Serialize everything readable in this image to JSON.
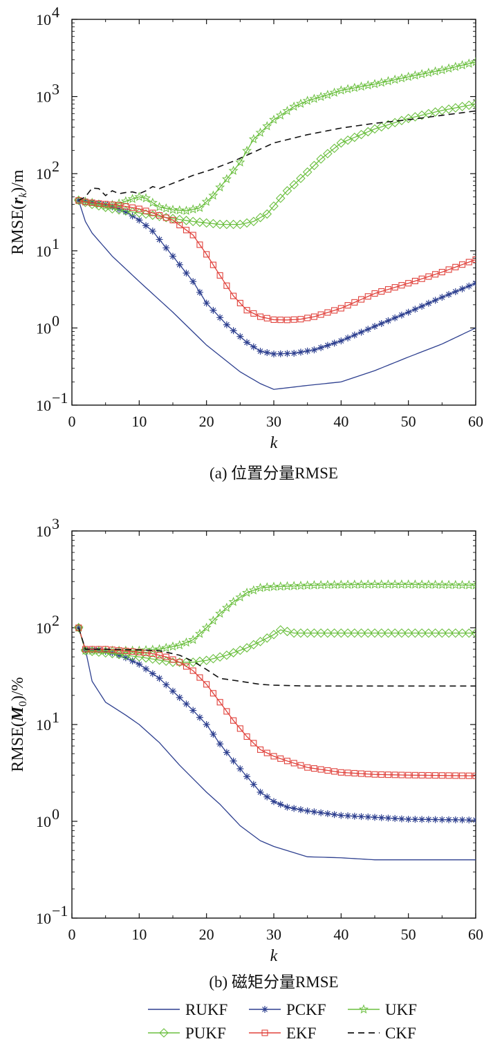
{
  "chart_data": [
    {
      "type": "line",
      "panel": "a",
      "caption": "(a) 位置分量RMSE",
      "xlabel": "k",
      "ylabel": "RMSE(r_k)/m",
      "ylabel_parts": {
        "pre": "RMSE(",
        "var": "r",
        "sub": "k",
        "post": ")/m"
      },
      "xlim": [
        0,
        60
      ],
      "ylim_log10": [
        -1,
        4
      ],
      "yscale": "log",
      "xticks": [
        0,
        10,
        20,
        30,
        40,
        50,
        60
      ],
      "yticks": [
        {
          "base": "10",
          "exp": "−1"
        },
        {
          "base": "10",
          "exp": "0"
        },
        {
          "base": "10",
          "exp": "1"
        },
        {
          "base": "10",
          "exp": "2"
        },
        {
          "base": "10",
          "exp": "3"
        },
        {
          "base": "10",
          "exp": "4"
        }
      ],
      "series": [
        {
          "name": "RUKF",
          "keys_k": [
            1,
            2,
            3,
            6,
            10,
            15,
            20,
            25,
            28,
            30,
            35,
            40,
            45,
            50,
            55,
            60
          ],
          "keys_v": [
            45,
            24,
            17,
            8.5,
            4,
            1.6,
            0.6,
            0.27,
            0.19,
            0.16,
            0.18,
            0.2,
            0.28,
            0.42,
            0.62,
            1.0
          ]
        },
        {
          "name": "PCKF",
          "keys_k": [
            1,
            2,
            5,
            8,
            10,
            12,
            15,
            18,
            20,
            23,
            26,
            28,
            30,
            33,
            36,
            40,
            45,
            50,
            55,
            60
          ],
          "keys_v": [
            45,
            44,
            40,
            32,
            25,
            18,
            8.5,
            4,
            2.1,
            1.1,
            0.65,
            0.5,
            0.46,
            0.47,
            0.52,
            0.68,
            1.05,
            1.6,
            2.5,
            3.8
          ]
        },
        {
          "name": "UKF",
          "keys_k": [
            1,
            3,
            5,
            7,
            9,
            10,
            11,
            12,
            13,
            15,
            17,
            19,
            21,
            23,
            25,
            27,
            30,
            33,
            35,
            38,
            40,
            45,
            50,
            55,
            60
          ],
          "keys_v": [
            45,
            42,
            38,
            41,
            47,
            50,
            48,
            42,
            37,
            34,
            33,
            36,
            52,
            85,
            140,
            280,
            500,
            740,
            880,
            1050,
            1200,
            1450,
            1800,
            2200,
            2800
          ]
        },
        {
          "name": "PUKF",
          "keys_k": [
            1,
            3,
            6,
            10,
            14,
            18,
            22,
            25,
            27,
            28,
            29,
            30,
            31,
            32,
            33,
            35,
            37,
            40,
            45,
            50,
            55,
            60
          ],
          "keys_v": [
            45,
            40,
            35,
            31,
            27,
            24,
            22,
            22,
            24,
            27,
            30,
            38,
            48,
            60,
            72,
            105,
            155,
            250,
            380,
            520,
            660,
            800
          ]
        },
        {
          "name": "EKF",
          "keys_k": [
            1,
            2,
            4,
            7,
            10,
            12,
            15,
            18,
            20,
            22,
            24,
            26,
            28,
            30,
            32,
            34,
            36,
            40,
            45,
            50,
            55,
            60
          ],
          "keys_v": [
            45,
            43,
            41,
            39,
            35,
            31,
            25,
            16,
            9,
            4.8,
            2.6,
            1.7,
            1.4,
            1.28,
            1.27,
            1.3,
            1.4,
            1.8,
            2.8,
            3.8,
            5.3,
            7.7
          ]
        },
        {
          "name": "CKF",
          "keys_k": [
            1,
            2,
            3,
            4,
            5,
            6,
            7,
            8,
            9,
            10,
            11,
            12,
            13,
            15,
            18,
            21,
            24,
            27,
            30,
            35,
            40,
            45,
            50,
            55,
            60
          ],
          "keys_v": [
            45,
            50,
            65,
            64,
            52,
            60,
            55,
            57,
            58,
            55,
            60,
            68,
            64,
            75,
            95,
            115,
            145,
            190,
            250,
            320,
            390,
            450,
            500,
            570,
            650
          ]
        }
      ]
    },
    {
      "type": "line",
      "panel": "b",
      "caption": "(b) 磁矩分量RMSE",
      "xlabel": "k",
      "ylabel": "RMSE(M_0)/%",
      "ylabel_parts": {
        "pre": "RMSE(",
        "var": "M",
        "sub": "0",
        "post": ")/%"
      },
      "xlim": [
        0,
        60
      ],
      "ylim_log10": [
        -1,
        3
      ],
      "yscale": "log",
      "xticks": [
        0,
        10,
        20,
        30,
        40,
        50,
        60
      ],
      "yticks": [
        {
          "base": "10",
          "exp": "−1"
        },
        {
          "base": "10",
          "exp": "0"
        },
        {
          "base": "10",
          "exp": "1"
        },
        {
          "base": "10",
          "exp": "2"
        },
        {
          "base": "10",
          "exp": "3"
        }
      ],
      "series": [
        {
          "name": "RUKF",
          "keys_k": [
            1,
            2,
            3,
            5,
            8,
            10,
            13,
            16,
            20,
            22,
            25,
            28,
            30,
            35,
            40,
            45,
            50,
            60
          ],
          "keys_v": [
            100,
            60,
            28,
            17,
            12.5,
            10,
            6.5,
            3.8,
            2.0,
            1.5,
            0.9,
            0.63,
            0.55,
            0.43,
            0.42,
            0.4,
            0.4,
            0.4
          ]
        },
        {
          "name": "PCKF",
          "keys_k": [
            1,
            2,
            4,
            6,
            8,
            10,
            13,
            16,
            18,
            20,
            22,
            24,
            26,
            28,
            30,
            32,
            35,
            40,
            45,
            50,
            60
          ],
          "keys_v": [
            100,
            59,
            59,
            55,
            49,
            42,
            30,
            19,
            14,
            10,
            6.3,
            4.2,
            2.9,
            2.0,
            1.6,
            1.4,
            1.28,
            1.15,
            1.1,
            1.05,
            1.03
          ]
        },
        {
          "name": "UKF",
          "keys_k": [
            1,
            2,
            5,
            10,
            13,
            16,
            18,
            20,
            22,
            24,
            26,
            28,
            30,
            33,
            36,
            40,
            45,
            50,
            60
          ],
          "keys_v": [
            100,
            58,
            58,
            58,
            60,
            66,
            75,
            100,
            140,
            185,
            230,
            258,
            265,
            270,
            275,
            278,
            280,
            280,
            275
          ]
        },
        {
          "name": "PUKF",
          "keys_k": [
            1,
            2,
            5,
            10,
            15,
            18,
            20,
            23,
            26,
            28,
            30,
            31,
            33,
            36,
            40,
            50,
            60
          ],
          "keys_v": [
            100,
            58,
            55,
            50,
            44,
            44,
            46,
            52,
            62,
            72,
            85,
            95,
            88,
            88,
            88,
            88,
            88
          ]
        },
        {
          "name": "EKF",
          "keys_k": [
            1,
            2,
            5,
            10,
            12,
            14,
            16,
            18,
            20,
            22,
            24,
            26,
            28,
            30,
            32,
            35,
            40,
            45,
            50,
            60
          ],
          "keys_v": [
            100,
            60,
            60,
            56,
            54,
            50,
            44,
            36,
            26,
            17,
            11,
            7.5,
            5.5,
            4.7,
            4.2,
            3.6,
            3.2,
            3.05,
            3.0,
            2.95
          ]
        },
        {
          "name": "CKF",
          "keys_k": [
            1,
            2,
            5,
            10,
            13,
            16,
            18,
            20,
            22,
            25,
            28,
            30,
            35,
            40,
            50,
            60
          ],
          "keys_v": [
            100,
            60,
            60,
            59,
            58,
            52,
            45,
            37,
            30,
            28,
            26,
            25.5,
            25,
            25,
            25,
            25
          ]
        }
      ]
    }
  ],
  "series_styles": {
    "RUKF": {
      "color": "#2d3f8f",
      "marker": "none",
      "dash": ""
    },
    "PCKF": {
      "color": "#2d3f8f",
      "marker": "asterisk",
      "dash": ""
    },
    "UKF": {
      "color": "#6abf3e",
      "marker": "star",
      "dash": ""
    },
    "PUKF": {
      "color": "#6abf3e",
      "marker": "diamond",
      "dash": ""
    },
    "EKF": {
      "color": "#e0403a",
      "marker": "square",
      "dash": ""
    },
    "CKF": {
      "color": "#111111",
      "marker": "none",
      "dash": "9,6"
    }
  },
  "legend": {
    "placement": "bottom",
    "items": [
      "RUKF",
      "PCKF",
      "UKF",
      "PUKF",
      "EKF",
      "CKF"
    ]
  }
}
